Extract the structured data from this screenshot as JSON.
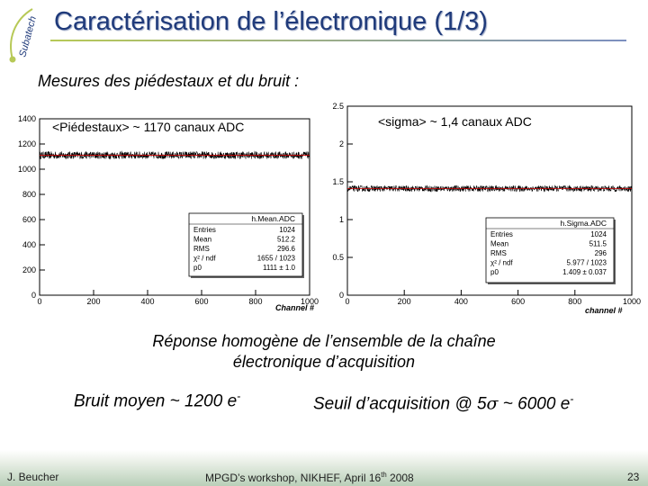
{
  "header": {
    "logo_text": "Subatech",
    "title": "Caractérisation de l’électronique (1/3)",
    "subtitle": "Mesures des piédestaux et du bruit :"
  },
  "colors": {
    "title": "#1f3a7a",
    "accent_line": "#b7c957",
    "footer_bg": "#b8cfb8"
  },
  "chart_data": [
    {
      "type": "line",
      "annotation": "<Piédestaux> ~ 1170 canaux ADC",
      "xlabel": "Channel #",
      "xlim": [
        0,
        1000
      ],
      "ylim": [
        0,
        1400
      ],
      "x_ticks": [
        "0",
        "200",
        "400",
        "600",
        "800",
        "1000"
      ],
      "y_ticks": [
        "0",
        "200",
        "400",
        "600",
        "800",
        "1000",
        "1200",
        "1400"
      ],
      "series_level": 1111,
      "series_spread": 30,
      "fit_level": 1111,
      "stats_box": {
        "title": "h.Mean.ADC",
        "rows": [
          [
            "Entries",
            "1024"
          ],
          [
            "Mean",
            "512.2"
          ],
          [
            "RMS",
            "296.6"
          ],
          [
            "χ² / ndf",
            "1655 / 1023"
          ],
          [
            "p0",
            "1111 ± 1.0"
          ]
        ]
      }
    },
    {
      "type": "line",
      "annotation": "<sigma> ~ 1,4 canaux ADC",
      "xlabel": "channel #",
      "xlim": [
        0,
        1000
      ],
      "ylim": [
        0,
        2.5
      ],
      "x_ticks": [
        "0",
        "200",
        "400",
        "600",
        "800",
        "1000"
      ],
      "y_ticks": [
        "0",
        "0.5",
        "1",
        "1.5",
        "2",
        "2.5"
      ],
      "series_level": 1.41,
      "series_spread": 0.04,
      "fit_level": 1.409,
      "stats_box": {
        "title": "h.Sigma.ADC",
        "rows": [
          [
            "Entries",
            "1024"
          ],
          [
            "Mean",
            "511.5"
          ],
          [
            "RMS",
            "296"
          ],
          [
            "χ² / ndf",
            "5.977 / 1023"
          ],
          [
            "p0",
            "1.409 ± 0.037"
          ]
        ]
      }
    }
  ],
  "caption": {
    "line1": "Réponse homogène de l’ensemble de la chaîne",
    "line2": "électronique d’acquisition"
  },
  "noise": {
    "text": "Bruit moyen ~ 1200 e",
    "sup": "-"
  },
  "threshold": {
    "prefix": "Seuil d’acquisition @ 5",
    "sigma": "σ",
    "suffix": " ~ 6000 e",
    "sup": "-"
  },
  "footer": {
    "author": "J. Beucher",
    "conf_prefix": "MPGD’s workshop, NIKHEF,  April 16",
    "conf_sup": "th",
    "conf_suffix": " 2008",
    "page": "23"
  }
}
